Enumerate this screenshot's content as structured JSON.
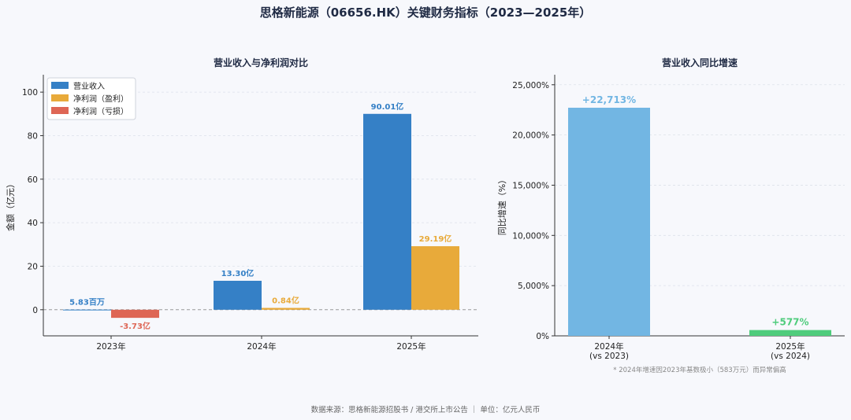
{
  "page_title": "思格新能源（06656.HK）关键财务指标（2023—2025年）",
  "footer": "数据来源：思格新能源招股书 / 港交所上市公告 ｜ 单位：亿元人民币",
  "colors": {
    "revenue": "#3580c6",
    "profit": "#e8aa3a",
    "loss": "#de6655",
    "growth_2024": "#72b6e3",
    "growth_2025": "#4fcc7c"
  },
  "chart_data": [
    {
      "type": "bar",
      "title": "营业收入与净利润对比",
      "ylabel": "金额（亿元）",
      "categories": [
        "2023年",
        "2024年",
        "2025年"
      ],
      "ylim": [
        -12,
        108
      ],
      "yticks": [
        0,
        20,
        40,
        60,
        80,
        100
      ],
      "grid": true,
      "legend_position": "top-left",
      "legend": [
        "营业收入",
        "净利润（盈利）",
        "净利润（亏损）"
      ],
      "series": [
        {
          "name": "营业收入",
          "values": [
            0.0583,
            13.3,
            90.01
          ],
          "labels": [
            "5.83百万",
            "13.30亿",
            "90.01亿"
          ]
        },
        {
          "name": "净利润",
          "values": [
            -3.73,
            0.84,
            29.19
          ],
          "labels": [
            "-3.73亿",
            "0.84亿",
            "29.19亿"
          ]
        }
      ]
    },
    {
      "type": "bar",
      "title": "营业收入同比增速",
      "ylabel": "同比增速（%）",
      "categories": [
        "2024年\n(vs 2023)",
        "2025年\n(vs 2024)"
      ],
      "ylim": [
        0,
        26000
      ],
      "yticks": [
        "0%",
        "5,000%",
        "10,000%",
        "15,000%",
        "20,000%",
        "25,000%"
      ],
      "grid": true,
      "values": [
        22713,
        577
      ],
      "labels": [
        "+22,713%",
        "+577%"
      ],
      "note": "* 2024年增速因2023年基数极小（583万元）而异常偏高"
    }
  ]
}
